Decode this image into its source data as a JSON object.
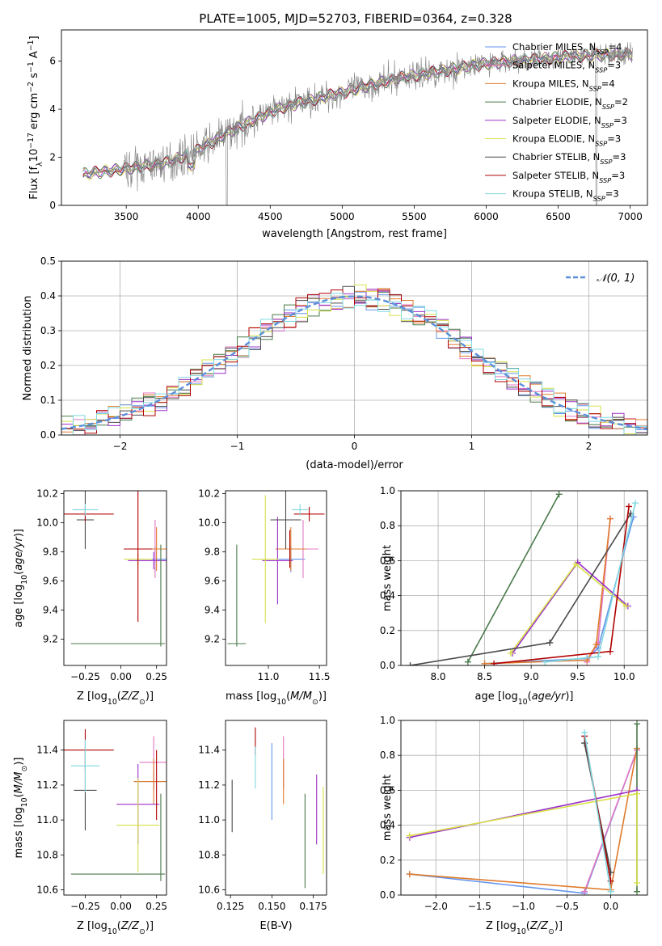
{
  "figure": {
    "title": "PLATE=1005, MJD=52703, FIBERID=0364, z=0.328"
  },
  "colors": {
    "Chabrier MILES": "#6495ed",
    "Salpeter MILES": "#e377c2",
    "Kroupa MILES": "#e07b2c",
    "Chabrier ELODIE": "#4a7a4a",
    "Salpeter ELODIE": "#9b30c8",
    "Kroupa ELODIE": "#d8e04a",
    "Chabrier STELIB": "#4a4a4a",
    "Salpeter STELIB": "#b00000",
    "Kroupa STELIB": "#7fd8e0",
    "data": "#808080",
    "normal": "#5b8fd9"
  },
  "chart_data": [
    {
      "id": "spectrum",
      "type": "line",
      "xlabel": "wavelength [Angstrom, rest frame]",
      "ylabel": "Flux [f_λ 10^-17 erg cm^-2 s^-1 A^-1]",
      "xlim": [
        3050,
        7120
      ],
      "ylim": [
        0,
        7.3
      ],
      "xticks": [
        3500,
        4000,
        4500,
        5000,
        5500,
        6000,
        6500,
        7000
      ],
      "yticks": [
        0,
        2,
        4,
        6
      ],
      "legend_position": "top-right",
      "legend": [
        {
          "model": "Chabrier MILES",
          "nssp": "4"
        },
        {
          "model": "Salpeter MILES",
          "nssp": "3"
        },
        {
          "model": "Kroupa MILES",
          "nssp": "4"
        },
        {
          "model": "Chabrier ELODIE",
          "nssp": "2"
        },
        {
          "model": "Salpeter ELODIE",
          "nssp": "3"
        },
        {
          "model": "Kroupa ELODIE",
          "nssp": "3"
        },
        {
          "model": "Chabrier STELIB",
          "nssp": "3"
        },
        {
          "model": "Salpeter STELIB",
          "nssp": "3"
        },
        {
          "model": "Kroupa STELIB",
          "nssp": "3"
        }
      ],
      "continuum_x": [
        3200,
        3400,
        3600,
        3800,
        4000,
        4200,
        4400,
        4600,
        4800,
        5000,
        5200,
        5400,
        5600,
        5800,
        6000,
        6200,
        6400,
        6600,
        6800,
        7000
      ],
      "continuum_y": [
        1.3,
        1.45,
        1.6,
        1.8,
        2.3,
        3.0,
        3.6,
        4.1,
        4.4,
        4.7,
        5.0,
        5.3,
        5.5,
        5.7,
        5.9,
        6.0,
        6.1,
        6.2,
        6.25,
        6.3
      ]
    },
    {
      "id": "residuals",
      "type": "line",
      "xlabel": "(data-model)/error",
      "ylabel": "Normed distribution",
      "xlim": [
        -2.5,
        2.5
      ],
      "ylim": [
        0,
        0.5
      ],
      "xticks": [
        -2,
        -1,
        0,
        1,
        2
      ],
      "yticks": [
        0.0,
        0.1,
        0.2,
        0.3,
        0.4,
        0.5
      ],
      "grid": true,
      "legend_position": "top-right",
      "normal_label": "𝒩(0, 1)"
    },
    {
      "id": "age_vs_Z",
      "type": "scatter",
      "xlabel": "Z [log10(Z/Z⊙)]",
      "ylabel": "age [log10(age/yr)]",
      "xlim": [
        -0.4,
        0.32
      ],
      "ylim": [
        9.02,
        10.22
      ],
      "xticks": [
        -0.25,
        0.0,
        0.25
      ],
      "yticks": [
        9.2,
        9.4,
        9.6,
        9.8,
        10.0,
        10.2
      ],
      "points": [
        {
          "model": "Chabrier MILES",
          "x": 0.24,
          "y": 9.75,
          "xerr": 0.14,
          "yerr": 0.09
        },
        {
          "model": "Salpeter MILES",
          "x": 0.24,
          "y": 9.82,
          "xerr": 0.05,
          "yerr": 0.2
        },
        {
          "model": "Kroupa MILES",
          "x": 0.25,
          "y": 9.82,
          "xerr": 0.1,
          "yerr": 0.15
        },
        {
          "model": "Chabrier ELODIE",
          "x": -0.02,
          "y": 9.17,
          "xerr": 0.33,
          "yerr": 0.0
        },
        {
          "model": "Salpeter ELODIE",
          "x": 0.23,
          "y": 9.74,
          "xerr": 0.18,
          "yerr": 0.06
        },
        {
          "model": "Kroupa ELODIE",
          "x": 0.12,
          "y": 9.75,
          "xerr": 0.1,
          "yerr": 0.04
        },
        {
          "model": "Chabrier STELIB",
          "x": -0.25,
          "y": 10.02,
          "xerr": 0.06,
          "yerr": 0.2
        },
        {
          "model": "Salpeter STELIB",
          "x": -0.25,
          "y": 10.06,
          "xerr": 0.2,
          "yerr": 0.05
        },
        {
          "model": "Kroupa STELIB",
          "x": -0.25,
          "y": 10.09,
          "xerr": 0.09,
          "yerr": 0.04
        },
        {
          "model": "Salpeter STELIB",
          "x": 0.12,
          "y": 9.82,
          "xerr": 0.1,
          "yerr": 0.5
        },
        {
          "model": "Chabrier ELODIE",
          "x": 0.28,
          "y": 9.5,
          "xerr": 0.0,
          "yerr": 0.35
        }
      ]
    },
    {
      "id": "age_vs_mass",
      "type": "scatter",
      "xlabel": "mass [log10(M/M⊙)]",
      "ylabel": "",
      "xlim": [
        10.58,
        11.57
      ],
      "ylim": [
        9.02,
        10.22
      ],
      "xticks": [
        11.0,
        11.5
      ],
      "yticks": [
        9.2,
        9.4,
        9.6,
        9.8,
        10.0,
        10.2
      ],
      "points": [
        {
          "model": "Chabrier MILES",
          "x": 11.22,
          "y": 9.75,
          "xerr": 0.14,
          "yerr": 0.09
        },
        {
          "model": "Salpeter MILES",
          "x": 11.34,
          "y": 9.82,
          "xerr": 0.15,
          "yerr": 0.2
        },
        {
          "model": "Kroupa MILES",
          "x": 11.22,
          "y": 9.82,
          "xerr": 0.15,
          "yerr": 0.15
        },
        {
          "model": "Chabrier ELODIE",
          "x": 10.69,
          "y": 9.17,
          "xerr": 0.09,
          "yerr": 0.0
        },
        {
          "model": "Salpeter ELODIE",
          "x": 11.09,
          "y": 9.74,
          "xerr": 0.15,
          "yerr": 0.3
        },
        {
          "model": "Kroupa ELODIE",
          "x": 10.97,
          "y": 9.75,
          "xerr": 0.13,
          "yerr": 0.44
        },
        {
          "model": "Chabrier STELIB",
          "x": 11.17,
          "y": 10.02,
          "xerr": 0.15,
          "yerr": 0.2
        },
        {
          "model": "Salpeter STELIB",
          "x": 11.4,
          "y": 10.06,
          "xerr": 0.15,
          "yerr": 0.05
        },
        {
          "model": "Kroupa STELIB",
          "x": 11.31,
          "y": 10.09,
          "xerr": 0.08,
          "yerr": 0.04
        },
        {
          "model": "Chabrier ELODIE",
          "x": 10.69,
          "y": 9.5,
          "xerr": 0.0,
          "yerr": 0.35
        },
        {
          "model": "Salpeter STELIB",
          "x": 11.21,
          "y": 9.82,
          "xerr": 0.0,
          "yerr": 0.13
        }
      ]
    },
    {
      "id": "weight_vs_age",
      "type": "line",
      "xlabel": "age [log10(age/yr)]",
      "ylabel": "mass weight",
      "xlim": [
        7.6,
        10.25
      ],
      "ylim": [
        0,
        1.0
      ],
      "xticks": [
        8.0,
        8.5,
        9.0,
        9.5,
        10.0
      ],
      "yticks": [
        0.0,
        0.2,
        0.4,
        0.6,
        0.8,
        1.0
      ],
      "grid": true,
      "series": [
        {
          "model": "Chabrier MILES",
          "x": [
            8.5,
            9.6,
            9.72,
            10.1
          ],
          "y": [
            0.01,
            0.04,
            0.1,
            0.85
          ]
        },
        {
          "model": "Salpeter MILES",
          "x": [
            9.6,
            9.72,
            9.85
          ],
          "y": [
            0.02,
            0.13,
            0.84
          ]
        },
        {
          "model": "Kroupa MILES",
          "x": [
            8.5,
            9.6,
            9.7,
            9.85
          ],
          "y": [
            0.01,
            0.03,
            0.12,
            0.84
          ]
        },
        {
          "model": "Chabrier ELODIE",
          "x": [
            8.32,
            9.3
          ],
          "y": [
            0.02,
            0.98
          ]
        },
        {
          "model": "Salpeter ELODIE",
          "x": [
            8.8,
            9.5,
            10.04
          ],
          "y": [
            0.07,
            0.59,
            0.34
          ]
        },
        {
          "model": "Kroupa ELODIE",
          "x": [
            8.78,
            9.48,
            10.02
          ],
          "y": [
            0.07,
            0.58,
            0.34
          ]
        },
        {
          "model": "Chabrier STELIB",
          "x": [
            7.7,
            9.2,
            10.07
          ],
          "y": [
            0.0,
            0.13,
            0.87
          ]
        },
        {
          "model": "Salpeter STELIB",
          "x": [
            8.6,
            9.85,
            10.05
          ],
          "y": [
            0.01,
            0.08,
            0.91
          ]
        },
        {
          "model": "Kroupa STELIB",
          "x": [
            9.15,
            9.72,
            10.12
          ],
          "y": [
            0.02,
            0.05,
            0.93
          ]
        }
      ]
    },
    {
      "id": "mass_vs_Z",
      "type": "scatter",
      "xlabel": "Z [log10(Z/Z⊙)]",
      "ylabel": "mass [log10(M/M⊙)]",
      "xlim": [
        -0.4,
        0.32
      ],
      "ylim": [
        10.57,
        11.57
      ],
      "xticks": [
        -0.25,
        0.0,
        0.25
      ],
      "yticks": [
        10.6,
        10.8,
        11.0,
        11.2,
        11.4
      ],
      "points": [
        {
          "model": "Chabrier MILES",
          "x": 0.23,
          "y": 11.22,
          "xerr": 0.14,
          "yerr": 0.05
        },
        {
          "model": "Salpeter MILES",
          "x": 0.23,
          "y": 11.33,
          "xerr": 0.1,
          "yerr": 0.15
        },
        {
          "model": "Kroupa MILES",
          "x": 0.23,
          "y": 11.22,
          "xerr": 0.14,
          "yerr": 0.13
        },
        {
          "model": "Chabrier ELODIE",
          "x": -0.02,
          "y": 10.69,
          "xerr": 0.33,
          "yerr": 0.0
        },
        {
          "model": "Salpeter ELODIE",
          "x": 0.12,
          "y": 11.09,
          "xerr": 0.15,
          "yerr": 0.23
        },
        {
          "model": "Kroupa ELODIE",
          "x": 0.12,
          "y": 10.97,
          "xerr": 0.15,
          "yerr": 0.27
        },
        {
          "model": "Chabrier STELIB",
          "x": -0.25,
          "y": 11.17,
          "xerr": 0.08,
          "yerr": 0.23
        },
        {
          "model": "Salpeter STELIB",
          "x": -0.25,
          "y": 11.4,
          "xerr": 0.2,
          "yerr": 0.12
        },
        {
          "model": "Kroupa STELIB",
          "x": -0.25,
          "y": 11.31,
          "xerr": 0.1,
          "yerr": 0.15
        },
        {
          "model": "Chabrier ELODIE",
          "x": 0.28,
          "y": 10.9,
          "xerr": 0.0,
          "yerr": 0.25
        },
        {
          "model": "Salpeter STELIB",
          "x": 0.25,
          "y": 11.2,
          "xerr": 0.0,
          "yerr": 0.2
        }
      ]
    },
    {
      "id": "mass_vs_ebv",
      "type": "scatter",
      "xlabel": "E(B-V)",
      "ylabel": "",
      "xlim": [
        0.122,
        0.183
      ],
      "ylim": [
        10.57,
        11.57
      ],
      "xticks": [
        0.125,
        0.15,
        0.175
      ],
      "yticks": [
        10.6,
        10.8,
        11.0,
        11.2,
        11.4
      ],
      "points": [
        {
          "model": "Chabrier MILES",
          "x": 0.15,
          "y": 11.22,
          "xerr": 0.0,
          "yerr": 0.22
        },
        {
          "model": "Salpeter MILES",
          "x": 0.157,
          "y": 11.33,
          "xerr": 0.0,
          "yerr": 0.15
        },
        {
          "model": "Kroupa MILES",
          "x": 0.157,
          "y": 11.22,
          "xerr": 0.0,
          "yerr": 0.13
        },
        {
          "model": "Chabrier ELODIE",
          "x": 0.17,
          "y": 10.88,
          "xerr": 0.0,
          "yerr": 0.27
        },
        {
          "model": "Salpeter ELODIE",
          "x": 0.177,
          "y": 11.06,
          "xerr": 0.0,
          "yerr": 0.2
        },
        {
          "model": "Kroupa ELODIE",
          "x": 0.181,
          "y": 10.94,
          "xerr": 0.0,
          "yerr": 0.25
        },
        {
          "model": "Chabrier STELIB",
          "x": 0.126,
          "y": 11.08,
          "xerr": 0.0,
          "yerr": 0.15
        },
        {
          "model": "Salpeter STELIB",
          "x": 0.14,
          "y": 11.45,
          "xerr": 0.0,
          "yerr": 0.08
        },
        {
          "model": "Kroupa STELIB",
          "x": 0.14,
          "y": 11.3,
          "xerr": 0.0,
          "yerr": 0.12
        }
      ]
    },
    {
      "id": "weight_vs_Z",
      "type": "line",
      "xlabel": "Z [log10(Z/Z⊙)]",
      "ylabel": "mass weight",
      "xlim": [
        -2.4,
        0.42
      ],
      "ylim": [
        0,
        1.0
      ],
      "xticks": [
        -2.0,
        -1.5,
        -1.0,
        -0.5,
        0.0
      ],
      "yticks": [
        0.0,
        0.2,
        0.4,
        0.6,
        0.8,
        1.0
      ],
      "grid": true,
      "series": [
        {
          "model": "Chabrier MILES",
          "x": [
            -2.3,
            -0.3,
            0.3
          ],
          "y": [
            0.12,
            0.01,
            0.83
          ]
        },
        {
          "model": "Salpeter MILES",
          "x": [
            -0.3,
            0.3
          ],
          "y": [
            0.02,
            0.83
          ]
        },
        {
          "model": "Kroupa MILES",
          "x": [
            -2.3,
            0.0,
            0.3
          ],
          "y": [
            0.12,
            0.03,
            0.84
          ]
        },
        {
          "model": "Chabrier ELODIE",
          "x": [
            0.3,
            0.3
          ],
          "y": [
            0.02,
            0.98
          ]
        },
        {
          "model": "Salpeter ELODIE",
          "x": [
            -2.3,
            0.3
          ],
          "y": [
            0.33,
            0.6
          ]
        },
        {
          "model": "Kroupa ELODIE",
          "x": [
            -2.3,
            0.3,
            0.3
          ],
          "y": [
            0.34,
            0.58,
            0.07
          ]
        },
        {
          "model": "Chabrier STELIB",
          "x": [
            -0.3,
            0.0
          ],
          "y": [
            0.87,
            0.13
          ]
        },
        {
          "model": "Salpeter STELIB",
          "x": [
            -0.3,
            0.0
          ],
          "y": [
            0.91,
            0.08
          ]
        },
        {
          "model": "Kroupa STELIB",
          "x": [
            -0.3,
            0.0
          ],
          "y": [
            0.93,
            0.02
          ]
        }
      ]
    }
  ]
}
